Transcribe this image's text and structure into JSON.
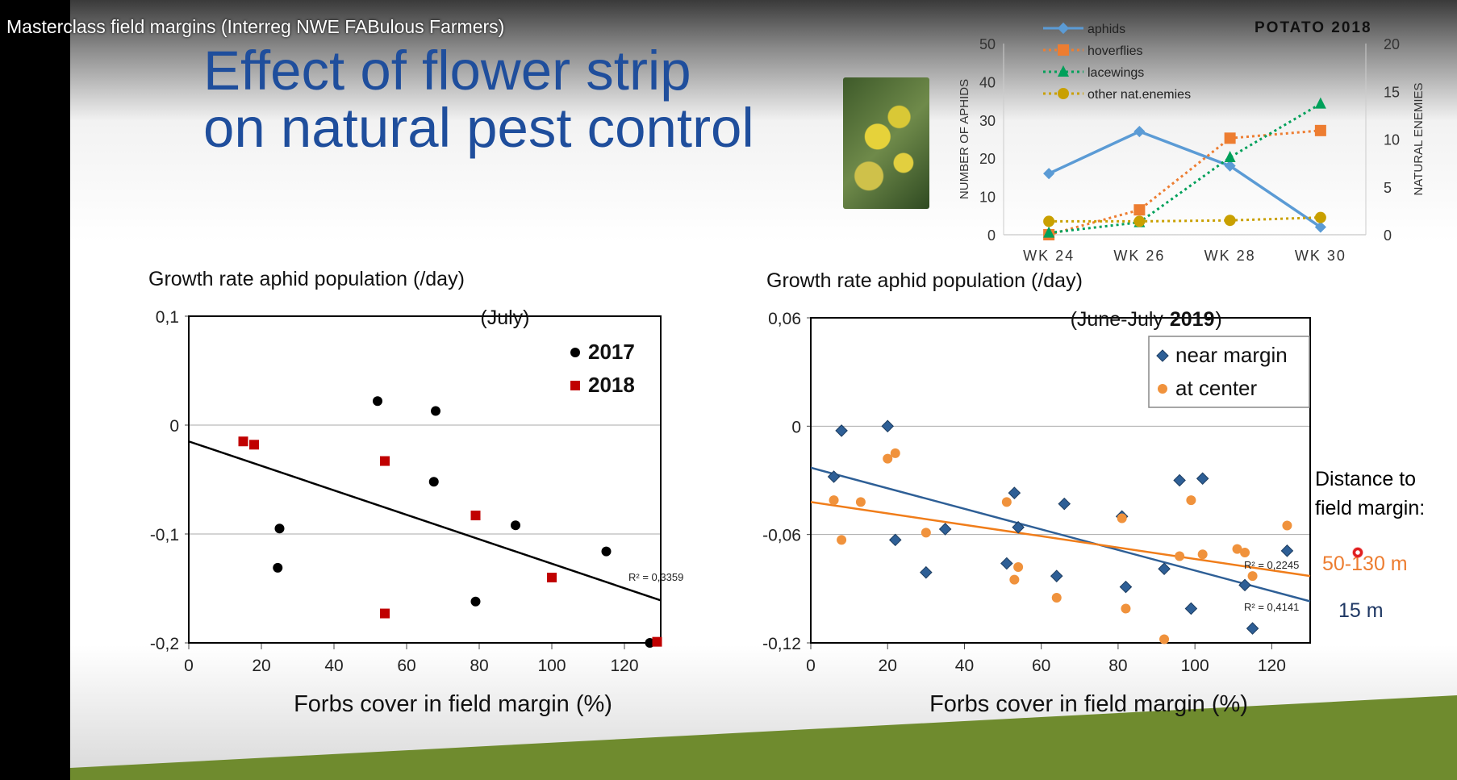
{
  "video_title": "Masterclass field margins (Interreg NWE FABulous Farmers)",
  "slide_title": [
    "Effect of flower strip",
    "on natural pest control"
  ],
  "distance_label": [
    "Distance to",
    "field margin:"
  ],
  "distance_values": {
    "far": "50-130 m",
    "near": "15 m"
  },
  "colors": {
    "title": "#1f4e9c",
    "aphids": "#5b9bd5",
    "hoverflies": "#ed7d31",
    "lacewings": "#00a05a",
    "other": "#c9a000",
    "y2017": "#000000",
    "y2018": "#c00000",
    "near": "#2e5f96",
    "center": "#f0923c",
    "green": "#6f8b2e"
  },
  "chart_data": [
    {
      "type": "line",
      "title": "POTATO 2018",
      "categories": [
        "WK 24",
        "WK 26",
        "WK 28",
        "WK 30"
      ],
      "ylabel": "NUMBER OF APHIDS",
      "y2label": "NATURAL ENEMIES",
      "ylim": [
        0,
        50
      ],
      "y2lim": [
        0,
        20
      ],
      "yticks": [
        "0",
        "10",
        "20",
        "30",
        "40",
        "50"
      ],
      "y2ticks": [
        "0",
        "5",
        "10",
        "15",
        "20"
      ],
      "legend": "top-center",
      "series": [
        {
          "name": "aphids",
          "axis": "left",
          "values": [
            16,
            27,
            18,
            2
          ]
        },
        {
          "name": "hoverflies",
          "axis": "right",
          "values": [
            0,
            2.6,
            10.1,
            10.9
          ]
        },
        {
          "name": "lacewings",
          "axis": "right",
          "values": [
            0.2,
            1.3,
            8.1,
            13.7
          ]
        },
        {
          "name": "other nat.enemies",
          "axis": "right",
          "values": [
            1.4,
            1.4,
            1.5,
            1.8
          ]
        }
      ]
    },
    {
      "type": "scatter",
      "title": "Growth rate aphid population (/day)",
      "subtitle": "(July)",
      "xlabel": "Forbs cover in field margin (%)",
      "xlim": [
        0,
        130
      ],
      "ylim": [
        -0.2,
        0.1
      ],
      "xticks": [
        "0",
        "20",
        "40",
        "60",
        "80",
        "100",
        "120"
      ],
      "yticks": [
        "-0,2",
        "-0,1",
        "0",
        "0,1"
      ],
      "legend": "top-right",
      "series": [
        {
          "name": "2017",
          "points": [
            [
              52,
              0.022
            ],
            [
              68,
              0.013
            ],
            [
              67.5,
              -0.052
            ],
            [
              25,
              -0.095
            ],
            [
              24.5,
              -0.131
            ],
            [
              90,
              -0.092
            ],
            [
              115,
              -0.116
            ],
            [
              79,
              -0.162
            ],
            [
              127,
              -0.2
            ]
          ]
        },
        {
          "name": "2018",
          "points": [
            [
              15,
              -0.015
            ],
            [
              18,
              -0.018
            ],
            [
              54,
              -0.033
            ],
            [
              79,
              -0.083
            ],
            [
              100,
              -0.14
            ],
            [
              54,
              -0.173
            ],
            [
              129,
              -0.199
            ]
          ]
        }
      ],
      "trendlines": [
        {
          "from": [
            0,
            -0.015
          ],
          "to": [
            130,
            -0.161
          ],
          "label": "R² = 0,3359"
        }
      ]
    },
    {
      "type": "scatter",
      "title": "Growth rate aphid population (/day)",
      "subtitle_pre": "(June-July ",
      "subtitle_bold": "2019",
      "subtitle_post": ")",
      "xlabel": "Forbs cover in field margin (%)",
      "xlim": [
        0,
        130
      ],
      "ylim": [
        -0.12,
        0.06
      ],
      "xticks": [
        "0",
        "20",
        "40",
        "60",
        "80",
        "100",
        "120"
      ],
      "yticks": [
        "-0,12",
        "-0,06",
        "0",
        "0,06"
      ],
      "legend": "top-right",
      "series": [
        {
          "name": "near margin",
          "points": [
            [
              8,
              -0.0025
            ],
            [
              20,
              0
            ],
            [
              6,
              -0.028
            ],
            [
              22,
              -0.063
            ],
            [
              30,
              -0.081
            ],
            [
              35,
              -0.057
            ],
            [
              51,
              -0.076
            ],
            [
              53,
              -0.037
            ],
            [
              54,
              -0.056
            ],
            [
              64,
              -0.083
            ],
            [
              66,
              -0.043
            ],
            [
              81,
              -0.05
            ],
            [
              82,
              -0.089
            ],
            [
              92,
              -0.079
            ],
            [
              96,
              -0.03
            ],
            [
              99,
              -0.101
            ],
            [
              102,
              -0.029
            ],
            [
              113,
              -0.088
            ],
            [
              115,
              -0.112
            ],
            [
              124,
              -0.069
            ]
          ]
        },
        {
          "name": "at center",
          "points": [
            [
              6,
              -0.041
            ],
            [
              8,
              -0.063
            ],
            [
              13,
              -0.042
            ],
            [
              20,
              -0.018
            ],
            [
              22,
              -0.015
            ],
            [
              30,
              -0.059
            ],
            [
              51,
              -0.042
            ],
            [
              53,
              -0.085
            ],
            [
              54,
              -0.078
            ],
            [
              64,
              -0.095
            ],
            [
              81,
              -0.051
            ],
            [
              82,
              -0.101
            ],
            [
              92,
              -0.118
            ],
            [
              96,
              -0.072
            ],
            [
              99,
              -0.041
            ],
            [
              102,
              -0.071
            ],
            [
              111,
              -0.068
            ],
            [
              113,
              -0.07
            ],
            [
              115,
              -0.083
            ],
            [
              124,
              -0.055
            ]
          ]
        }
      ],
      "trendlines": [
        {
          "from": [
            0,
            -0.023
          ],
          "to": [
            130,
            -0.097
          ],
          "label": "R² = 0,4141"
        },
        {
          "from": [
            0,
            -0.042
          ],
          "to": [
            130,
            -0.083
          ],
          "label": "R² = 0,2245"
        }
      ]
    }
  ]
}
